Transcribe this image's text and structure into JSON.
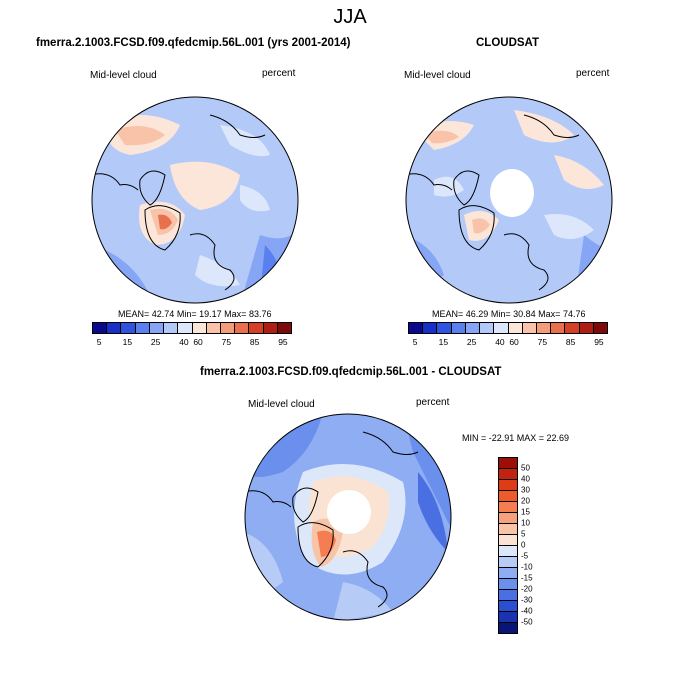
{
  "title": "JJA",
  "panels": [
    {
      "title": "fmerra.2.1003.FCSD.f09.qfedcmip.56L.001 (yrs 2001-2014)",
      "left_label": "Mid-level cloud",
      "right_label": "percent",
      "mean_label": "MEAN=",
      "mean": "42.74",
      "min_label": "Min=",
      "min": "19.17",
      "max_label": "Max=",
      "max": "83.76"
    },
    {
      "title": "CLOUDSAT",
      "left_label": "Mid-level cloud",
      "right_label": "percent",
      "mean_label": "MEAN=",
      "mean": "46.29",
      "min_label": "Min=",
      "min": "30.84",
      "max_label": "Max=",
      "max": "74.76"
    },
    {
      "title": "fmerra.2.1003.FCSD.f09.qfedcmip.56L.001 - CLOUDSAT",
      "left_label": "Mid-level cloud",
      "right_label": "percent",
      "minmax_text": "MIN = -22.91  MAX =  22.69"
    }
  ],
  "colorbar_abs": {
    "labels": [
      "5",
      "15",
      "25",
      "40",
      "60",
      "75",
      "85",
      "95"
    ],
    "colors": [
      "#0a0a8c",
      "#1630c8",
      "#2f55e0",
      "#5a80f0",
      "#86a6f5",
      "#b3c9f8",
      "#dce7fb",
      "#fbe6d9",
      "#f8c3a8",
      "#f29c78",
      "#e8704d",
      "#d54024",
      "#b01d12",
      "#7d0a08"
    ]
  },
  "colorbar_diff": {
    "labels": [
      "50",
      "40",
      "30",
      "20",
      "15",
      "10",
      "5",
      "0",
      "-5",
      "-10",
      "-15",
      "-20",
      "-30",
      "-40",
      "-50"
    ],
    "colors": [
      "#9b0f08",
      "#c2230f",
      "#de3b17",
      "#ef5a2a",
      "#f47d51",
      "#f6a07c",
      "#f8c4a8",
      "#fbe3d3",
      "#dce8fa",
      "#b6cbf6",
      "#8fadf2",
      "#6b8fec",
      "#4a6fe2",
      "#2b4fd2",
      "#1a33b0",
      "#0a1478"
    ]
  }
}
